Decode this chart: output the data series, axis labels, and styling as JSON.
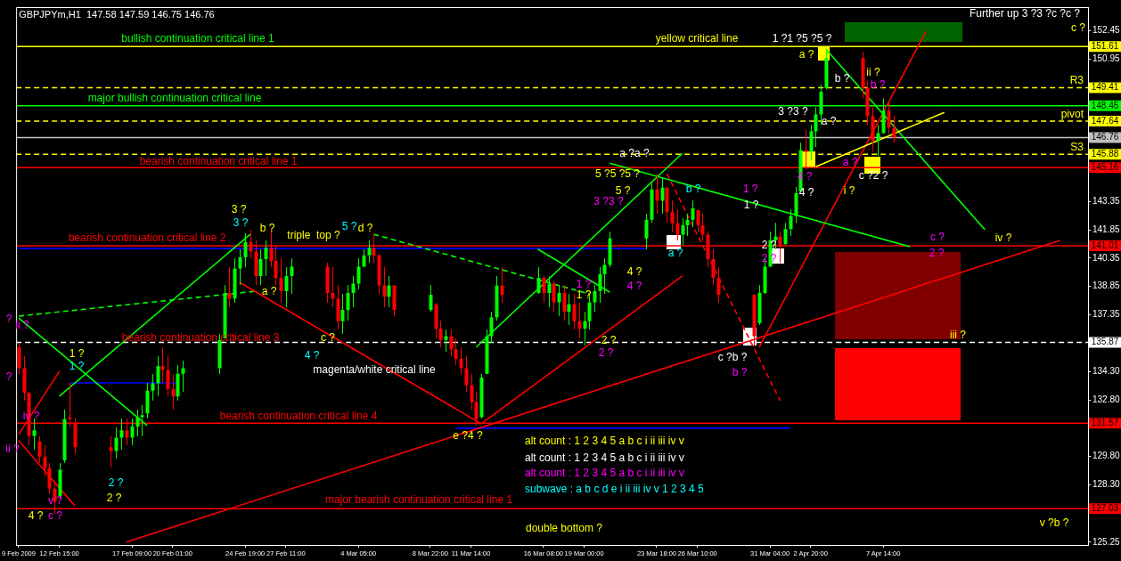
{
  "chart_data": {
    "type": "candlestick",
    "title": "GBPJPYm,H1  147.58 147.59 146.75 146.76",
    "x": [
      "2009-02-09T23:00",
      "2009-02-10T07:00",
      "2009-02-10T15:00",
      "2009-02-10T23:00",
      "2009-02-11T07:00",
      "2009-02-11T15:00",
      "2009-02-11T23:00",
      "2009-02-12T07:00",
      "2009-02-12T15:00",
      "2009-02-12T23:00",
      "2009-02-13T07:00",
      "2009-02-13T15:00",
      "2009-02-16T00:00",
      "2009-02-16T08:00",
      "2009-02-16T16:00",
      "2009-02-17T00:00",
      "2009-02-17T09:00",
      "2009-02-17T17:00",
      "2009-02-18T01:00",
      "2009-02-18T09:00",
      "2009-02-18T17:00",
      "2009-02-19T01:00",
      "2009-02-19T09:00",
      "2009-02-19T17:00",
      "2009-02-20T01:00",
      "2009-02-20T09:00",
      "2009-02-20T17:00",
      "2009-02-23T02:00",
      "2009-02-23T10:00",
      "2009-02-23T18:00",
      "2009-02-24T02:00",
      "2009-02-24T10:00",
      "2009-02-24T19:00",
      "2009-02-25T03:00",
      "2009-02-25T11:00",
      "2009-02-25T19:00",
      "2009-02-26T03:00",
      "2009-02-26T11:00",
      "2009-02-26T19:00",
      "2009-02-27T03:00",
      "2009-02-27T11:00",
      "2009-02-27T19:00",
      "2009-03-02T04:00",
      "2009-03-02T12:00",
      "2009-03-02T20:00",
      "2009-03-03T04:00",
      "2009-03-03T12:00",
      "2009-03-03T20:00",
      "2009-03-04T05:00",
      "2009-03-04T13:00",
      "2009-03-04T21:00",
      "2009-03-05T05:00",
      "2009-03-05T13:00",
      "2009-03-05T21:00",
      "2009-03-06T05:00",
      "2009-03-06T13:00",
      "2009-03-08T22:00",
      "2009-03-09T06:00",
      "2009-03-09T14:00",
      "2009-03-09T22:00",
      "2009-03-10T06:00",
      "2009-03-10T14:00",
      "2009-03-10T22:00",
      "2009-03-11T06:00",
      "2009-03-11T14:00",
      "2009-03-11T22:00",
      "2009-03-12T06:00",
      "2009-03-12T14:00",
      "2009-03-12T22:00",
      "2009-03-13T06:00",
      "2009-03-13T14:00",
      "2009-03-15T23:00",
      "2009-03-16T08:00",
      "2009-03-16T16:00",
      "2009-03-17T00:00",
      "2009-03-17T08:00",
      "2009-03-17T16:00",
      "2009-03-18T00:00",
      "2009-03-18T08:00",
      "2009-03-18T16:00",
      "2009-03-19T00:00",
      "2009-03-19T08:00",
      "2009-03-19T16:00",
      "2009-03-20T00:00",
      "2009-03-20T08:00",
      "2009-03-20T16:00",
      "2009-03-23T01:00",
      "2009-03-23T09:00",
      "2009-03-23T18:00",
      "2009-03-24T02:00",
      "2009-03-24T10:00",
      "2009-03-24T18:00",
      "2009-03-25T02:00",
      "2009-03-25T10:00",
      "2009-03-25T18:00",
      "2009-03-26T02:00",
      "2009-03-26T10:00",
      "2009-03-26T18:00",
      "2009-03-27T02:00",
      "2009-03-27T10:00",
      "2009-03-27T18:00",
      "2009-03-30T03:00",
      "2009-03-30T11:00",
      "2009-03-30T19:00",
      "2009-03-31T04:00",
      "2009-03-31T12:00",
      "2009-03-31T20:00",
      "2009-04-01T04:00",
      "2009-04-01T12:00",
      "2009-04-01T20:00",
      "2009-04-02T04:00",
      "2009-04-02T12:00",
      "2009-04-02T20:00",
      "2009-04-03T04:00",
      "2009-04-03T12:00",
      "2009-04-03T20:00",
      "2009-04-06T05:00",
      "2009-04-06T13:00",
      "2009-04-06T21:00",
      "2009-04-07T05:00",
      "2009-04-07T14:00",
      "2009-04-07T22:00",
      "2009-04-08T06:00"
    ],
    "ohlc": [
      [
        135.6,
        135.85,
        134.19,
        134.5
      ],
      [
        134.5,
        135.14,
        132.78,
        133.2
      ],
      [
        133.2,
        133.25,
        130.41,
        130.9
      ],
      [
        130.9,
        131.83,
        130.17,
        131.2
      ],
      [
        130.6,
        130.88,
        129.46,
        129.8
      ],
      [
        129.8,
        130.41,
        128.75,
        129.2
      ],
      [
        129.2,
        129.46,
        127.81,
        128.1
      ],
      [
        128.1,
        128.52,
        126.77,
        127.4
      ],
      [
        127.7,
        129.46,
        127.57,
        129.1
      ],
      [
        129.6,
        132.3,
        129.46,
        131.8
      ],
      [
        131.9,
        133.72,
        131.36,
        131.8
      ],
      [
        131.6,
        131.83,
        129.94,
        130.3
      ],
      [
        130.3,
        130.88,
        129.23,
        130.1
      ],
      [
        130.1,
        131.36,
        129.7,
        130.8
      ],
      [
        130.8,
        131.83,
        130.17,
        131.2
      ],
      [
        131.2,
        131.83,
        130.41,
        130.8
      ],
      [
        130.8,
        131.83,
        130.41,
        131.4
      ],
      [
        131.4,
        132.3,
        130.88,
        131.9
      ],
      [
        131.9,
        132.54,
        130.88,
        132.0
      ],
      [
        132.1,
        133.72,
        131.83,
        133.3
      ],
      [
        133.3,
        134.19,
        132.78,
        133.7
      ],
      [
        133.7,
        135.14,
        133.01,
        134.6
      ],
      [
        134.6,
        135.61,
        133.72,
        134.4
      ],
      [
        134.4,
        135.14,
        133.01,
        133.4
      ],
      [
        133.4,
        134.19,
        132.3,
        133.0
      ],
      [
        133.0,
        134.67,
        132.78,
        134.2
      ],
      [
        134.2,
        134.9,
        133.25,
        134.5
      ],
      [
        134.5,
        136.32,
        134.19,
        136.0
      ],
      [
        136.1,
        138.92,
        136.09,
        138.5
      ],
      [
        138.5,
        139.87,
        137.74,
        138.2
      ],
      [
        138.2,
        140.34,
        137.98,
        139.8
      ],
      [
        139.8,
        140.82,
        138.92,
        140.4
      ],
      [
        140.4,
        141.67,
        139.87,
        141.2
      ],
      [
        141.2,
        141.86,
        140.34,
        140.7
      ],
      [
        140.7,
        141.29,
        138.92,
        139.4
      ],
      [
        139.4,
        140.82,
        138.92,
        140.3
      ],
      [
        140.3,
        141.29,
        139.4,
        140.9
      ],
      [
        140.9,
        141.86,
        139.87,
        140.2
      ],
      [
        140.2,
        141.05,
        138.92,
        139.3
      ],
      [
        139.3,
        140.34,
        137.98,
        138.6
      ],
      [
        138.6,
        139.87,
        137.74,
        139.4
      ],
      [
        139.4,
        140.34,
        138.45,
        139.9
      ],
      [
        139.9,
        140.11,
        137.98,
        138.5
      ],
      [
        138.5,
        139.87,
        137.74,
        138.2
      ],
      [
        138.2,
        138.92,
        136.56,
        137.0
      ],
      [
        137.0,
        138.45,
        136.32,
        137.6
      ],
      [
        137.6,
        138.92,
        137.03,
        138.5
      ],
      [
        138.5,
        139.4,
        137.74,
        139.0
      ],
      [
        139.0,
        140.34,
        138.69,
        139.9
      ],
      [
        139.9,
        140.82,
        139.87,
        140.5
      ],
      [
        140.5,
        141.29,
        140.11,
        140.9
      ],
      [
        140.9,
        141.67,
        140.11,
        140.5
      ],
      [
        140.5,
        140.58,
        138.45,
        138.9
      ],
      [
        138.9,
        139.87,
        137.74,
        138.3
      ],
      [
        138.3,
        139.4,
        137.74,
        138.9
      ],
      [
        138.9,
        138.92,
        137.27,
        137.6
      ],
      [
        137.6,
        138.92,
        137.5,
        138.4
      ],
      [
        137.9,
        137.98,
        136.09,
        136.6
      ],
      [
        136.6,
        137.03,
        135.61,
        136.0
      ],
      [
        136.0,
        136.56,
        135.38,
        136.2
      ],
      [
        136.2,
        136.56,
        135.14,
        135.5
      ],
      [
        135.5,
        136.09,
        134.67,
        135.0
      ],
      [
        135.0,
        135.61,
        134.19,
        134.5
      ],
      [
        134.5,
        135.14,
        133.25,
        133.6
      ],
      [
        133.6,
        134.19,
        132.3,
        132.7
      ],
      [
        132.7,
        133.25,
        131.45,
        131.8
      ],
      [
        131.9,
        134.19,
        131.83,
        134.0
      ],
      [
        134.2,
        136.56,
        134.19,
        136.2
      ],
      [
        136.2,
        137.5,
        135.85,
        137.2
      ],
      [
        137.2,
        139.4,
        137.03,
        138.9
      ],
      [
        138.9,
        139.87,
        137.98,
        138.4
      ],
      [
        138.5,
        139.87,
        138.45,
        139.3
      ],
      [
        139.3,
        139.4,
        137.98,
        138.5
      ],
      [
        138.5,
        139.4,
        137.74,
        139.0
      ],
      [
        139.0,
        139.16,
        137.5,
        138.0
      ],
      [
        138.0,
        138.92,
        137.27,
        138.5
      ],
      [
        138.5,
        138.92,
        137.03,
        137.5
      ],
      [
        137.5,
        138.45,
        136.8,
        137.9
      ],
      [
        137.9,
        138.45,
        136.56,
        137.0
      ],
      [
        137.0,
        137.98,
        136.09,
        136.6
      ],
      [
        136.6,
        137.5,
        135.71,
        137.0
      ],
      [
        137.0,
        138.45,
        136.56,
        138.0
      ],
      [
        138.0,
        138.92,
        137.5,
        138.6
      ],
      [
        138.6,
        139.87,
        137.98,
        139.5
      ],
      [
        139.5,
        140.34,
        138.45,
        140.0
      ],
      [
        140.0,
        141.76,
        139.87,
        141.4
      ],
      [
        141.4,
        142.71,
        140.82,
        142.4
      ],
      [
        142.4,
        144.36,
        142.23,
        144.0
      ],
      [
        144.0,
        144.84,
        142.71,
        143.4
      ],
      [
        143.4,
        144.6,
        142.71,
        144.1
      ],
      [
        144.1,
        144.13,
        142.23,
        142.8
      ],
      [
        142.8,
        143.42,
        141.76,
        142.2
      ],
      [
        142.2,
        142.94,
        141.29,
        141.6
      ],
      [
        141.6,
        142.47,
        141.05,
        142.1
      ],
      [
        142.1,
        142.71,
        141.53,
        142.4
      ],
      [
        142.4,
        143.42,
        142.0,
        143.0
      ],
      [
        142.9,
        142.94,
        141.76,
        142.1
      ],
      [
        142.1,
        142.71,
        141.29,
        141.6
      ],
      [
        141.6,
        141.76,
        139.87,
        140.3
      ],
      [
        140.3,
        140.82,
        138.92,
        139.3
      ],
      [
        139.3,
        139.87,
        137.98,
        138.4
      ],
      [
        138.4,
        138.45,
        135.71,
        136.2
      ],
      [
        136.9,
        138.92,
        136.8,
        138.5
      ],
      [
        138.5,
        140.34,
        138.45,
        139.9
      ],
      [
        139.9,
        141.76,
        139.87,
        141.3
      ],
      [
        141.3,
        142.23,
        140.82,
        141.5
      ],
      [
        141.5,
        141.76,
        140.11,
        141.0
      ],
      [
        141.1,
        142.23,
        141.05,
        141.9
      ],
      [
        141.9,
        142.94,
        141.53,
        142.6
      ],
      [
        142.6,
        144.13,
        142.23,
        143.8
      ],
      [
        143.9,
        146.49,
        143.89,
        146.1
      ],
      [
        146.1,
        147.2,
        145.07,
        146.0
      ],
      [
        146.0,
        147.44,
        145.55,
        147.1
      ],
      [
        147.1,
        148.38,
        146.26,
        148.0
      ],
      [
        148.0,
        149.57,
        147.44,
        149.2
      ],
      [
        149.4,
        151.46,
        149.33,
        151.0
      ],
      [
        151.0,
        151.32,
        148.86,
        149.4
      ],
      [
        149.4,
        149.8,
        147.44,
        147.9
      ],
      [
        147.9,
        148.38,
        146.02,
        146.6
      ],
      [
        146.6,
        147.44,
        145.78,
        147.0
      ],
      [
        147.0,
        148.86,
        146.97,
        148.2
      ],
      [
        148.2,
        148.62,
        146.97,
        147.3
      ],
      [
        147.3,
        147.91,
        146.49,
        146.76
      ]
    ],
    "colors": [
      "#ff0000",
      "#ff0000",
      "#ff0000",
      "#00ff00",
      "#ff0000",
      "#ff0000",
      "#ff0000",
      "#ff0000",
      "#00ff00",
      "#00ff00",
      "#ff0000",
      "#ff0000",
      "#ff0000",
      "#00ff00",
      "#00ff00",
      "#ff0000",
      "#00ff00",
      "#00ff00",
      "#00ff00",
      "#00ff00",
      "#00ff00",
      "#00ff00",
      "#ff0000",
      "#ff0000",
      "#ff0000",
      "#00ff00",
      "#00ff00",
      "#00ff00",
      "#00ff00",
      "#ff0000",
      "#00ff00",
      "#00ff00",
      "#00ff00",
      "#ff0000",
      "#ff0000",
      "#00ff00",
      "#00ff00",
      "#ff0000",
      "#ff0000",
      "#ff0000",
      "#00ff00",
      "#00ff00",
      "#ff0000",
      "#ff0000",
      "#ff0000",
      "#00ff00",
      "#00ff00",
      "#00ff00",
      "#00ff00",
      "#00ff00",
      "#00ff00",
      "#ff0000",
      "#ff0000",
      "#ff0000",
      "#00ff00",
      "#ff0000",
      "#00ff00",
      "#ff0000",
      "#ff0000",
      "#00ff00",
      "#ff0000",
      "#ff0000",
      "#ff0000",
      "#ff0000",
      "#ff0000",
      "#ff0000",
      "#00ff00",
      "#00ff00",
      "#00ff00",
      "#00ff00",
      "#ff0000",
      "#00ff00",
      "#ff0000",
      "#00ff00",
      "#ff0000",
      "#00ff00",
      "#ff0000",
      "#00ff00",
      "#ff0000",
      "#ff0000",
      "#00ff00",
      "#00ff00",
      "#00ff00",
      "#00ff00",
      "#00ff00",
      "#00ff00",
      "#00ff00",
      "#00ff00",
      "#ff0000",
      "#00ff00",
      "#ff0000",
      "#ff0000",
      "#ff0000",
      "#00ff00",
      "#00ff00",
      "#00ff00",
      "#ff0000",
      "#ff0000",
      "#ff0000",
      "#ff0000",
      "#ff0000",
      "#ff0000",
      "#00ff00",
      "#00ff00",
      "#00ff00",
      "#00ff00",
      "#ff0000",
      "#00ff00",
      "#00ff00",
      "#00ff00",
      "#00ff00",
      "#ff0000",
      "#00ff00",
      "#00ff00",
      "#00ff00",
      "#00ff00",
      "#ff0000",
      "#ff0000",
      "#ff0000",
      "#00ff00",
      "#00ff00",
      "#ff0000",
      "#ff0000"
    ],
    "xlim": [
      "2009-02-09T19:00",
      "2009-04-21T00:00"
    ],
    "xticks": [
      {
        "value": "2009-02-09T23:00",
        "label": "9 Feb 2009"
      },
      {
        "value": "2009-02-12T15:00",
        "label": "12 Feb 15:00"
      },
      {
        "value": "2009-02-17T09:00",
        "label": "17 Feb 09:00"
      },
      {
        "value": "2009-02-20T01:00",
        "label": "20 Feb 01:00"
      },
      {
        "value": "2009-02-24T19:00",
        "label": "24 Feb 19:00"
      },
      {
        "value": "2009-02-27T11:00",
        "label": "27 Feb 11:00"
      },
      {
        "value": "2009-03-04T05:00",
        "label": "4 Mar 05:00"
      },
      {
        "value": "2009-03-08T22:00",
        "label": "8 Mar 22:00"
      },
      {
        "value": "2009-03-11T14:00",
        "label": "11 Mar 14:00"
      },
      {
        "value": "2009-03-16T08:00",
        "label": "16 Mar 08:00"
      },
      {
        "value": "2009-03-19T00:00",
        "label": "19 Mar 00:00"
      },
      {
        "value": "2009-03-23T18:00",
        "label": "23 Mar 18:00"
      },
      {
        "value": "2009-03-26T10:00",
        "label": "26 Mar 10:00"
      },
      {
        "value": "2009-03-31T04:00",
        "label": "31 Mar 04:00"
      },
      {
        "value": "2009-04-02T20:00",
        "label": "2 Apr 20:00"
      },
      {
        "value": "2009-04-07T14:00",
        "label": "7 Apr 14:00"
      }
    ],
    "ylim": [
      125.1,
      153.7
    ],
    "yticks": [
      152.45,
      150.95,
      143.35,
      141.85,
      140.35,
      138.85,
      137.35,
      {
        "value": 134.3,
        "label": "134.30"
      },
      {
        "value": 132.8,
        "label": "132.80"
      },
      {
        "value": 129.8,
        "label": "129.80"
      },
      {
        "value": 128.3,
        "label": "128.30"
      },
      125.25
    ],
    "grid": false,
    "marker": "none",
    "series": [
      {
        "type": "line",
        "color": "#ff0000",
        "x": [
          "2009-02-17T00:00",
          "2009-04-19T04:00"
        ],
        "values": [
          125.25,
          141.29
        ]
      },
      {
        "type": "line",
        "color": "#ff0000",
        "x": [
          "2009-02-24T10:00",
          "2009-03-12T06:00"
        ],
        "values": [
          139.07,
          131.55
        ]
      },
      {
        "type": "line",
        "color": "#00ff00",
        "x": [
          "2009-03-20T16:00",
          "2009-04-09T08:00"
        ],
        "values": [
          145.4,
          140.96
        ]
      },
      {
        "type": "line",
        "color": "#ffff00",
        "x": [
          "2009-04-03T04:00",
          "2009-04-11T14:00"
        ],
        "values": [
          145.21,
          148.1
        ]
      },
      {
        "type": "line",
        "color": "#00ff00",
        "x": [
          "2009-04-03T20:00",
          "2009-04-14T06:00"
        ],
        "values": [
          151.46,
          141.86
        ]
      },
      {
        "type": "line",
        "color": "#ff0000",
        "x": [
          "2009-03-30T11:00",
          "2009-04-10T09:00"
        ],
        "values": [
          135.61,
          152.4
        ]
      },
      {
        "type": "line",
        "color": "#00ff00",
        "x": [
          "2009-02-12T15:00",
          "2009-02-25T03:00"
        ],
        "values": [
          133.01,
          141.62
        ]
      },
      {
        "type": "line",
        "color": "#00ff00",
        "line_style": "dashed",
        "x": [
          "2009-02-09T23:00",
          "2009-02-25T11:00"
        ],
        "values": [
          137.27,
          138.59
        ]
      },
      {
        "type": "line",
        "color": "#00ff00",
        "x": [
          "2009-02-09T23:00",
          "2009-02-18T09:00"
        ],
        "values": [
          137.17,
          131.45
        ]
      },
      {
        "type": "line",
        "color": "#00ff00",
        "line_style": "dashed",
        "x": [
          "2009-03-05T05:00",
          "2009-03-19T08:00"
        ],
        "values": [
          141.62,
          138.45
        ]
      },
      {
        "type": "line",
        "color": "#00ff00",
        "x": [
          "2009-03-11T22:00",
          "2009-03-25T10:00"
        ],
        "values": [
          135.61,
          145.92
        ]
      },
      {
        "type": "line",
        "color": "#00ff00",
        "x": [
          "2009-03-15T23:00",
          "2009-03-20T16:00"
        ],
        "values": [
          140.83,
          138.55
        ]
      },
      {
        "type": "line",
        "color": "#ff0000",
        "x": [
          "2009-03-12T06:00",
          "2009-03-25T10:00"
        ],
        "values": [
          131.55,
          139.4
        ]
      },
      {
        "type": "line",
        "color": "#ff0000",
        "line_style": "dashed",
        "x": [
          "2009-03-24T10:00",
          "2009-03-31T20:00"
        ],
        "values": [
          144.84,
          132.77
        ]
      },
      {
        "type": "line",
        "color": "#ff0000",
        "x": [
          "2009-02-09T23:00",
          "2009-02-13T15:00"
        ],
        "values": [
          130.65,
          127.19
        ]
      },
      {
        "type": "line",
        "color": "#ff0000",
        "x": [
          "2009-02-09T23:00",
          "2009-02-12T15:00"
        ],
        "values": [
          130.98,
          134.34
        ]
      },
      {
        "type": "line",
        "color": "#0000ff",
        "x": [
          "2009-02-09T23:00",
          "2009-03-23T01:00"
        ],
        "values": [
          140.86,
          140.86
        ]
      },
      {
        "type": "line",
        "color": "#0000ff",
        "x": [
          "2009-02-13T07:00",
          "2009-02-20T09:00"
        ],
        "values": [
          133.72,
          133.72
        ]
      },
      {
        "type": "line",
        "color": "#0000ff",
        "x": [
          "2009-03-10T14:00",
          "2009-04-01T12:00"
        ],
        "values": [
          131.31,
          131.31
        ]
      }
    ],
    "ref_lines": [
      {
        "axis": "y",
        "value": 151.61,
        "label": "151.61",
        "color": "#ffff00",
        "line_style": "solid"
      },
      {
        "axis": "y",
        "value": 149.41,
        "label": "149.41",
        "color": "#ffff00",
        "line_style": "dashed"
      },
      {
        "axis": "y",
        "value": 148.45,
        "label": "148.45",
        "color": "#00ff00",
        "line_style": "solid"
      },
      {
        "axis": "y",
        "value": 147.64,
        "label": "147.64",
        "color": "#ffff00",
        "line_style": "dashed"
      },
      {
        "axis": "y",
        "value": 146.76,
        "label": "146.76",
        "color": "#c0c0c0",
        "line_style": "solid"
      },
      {
        "axis": "y",
        "value": 145.88,
        "label": "145.88",
        "color": "#ffff00",
        "line_style": "dashed"
      },
      {
        "axis": "y",
        "value": 145.16,
        "label": "145.16",
        "color": "#ff0000",
        "line_style": "solid"
      },
      {
        "axis": "y",
        "value": 141.01,
        "label": "141.01",
        "color": "#ff0000",
        "line_style": "solid"
      },
      {
        "axis": "y",
        "value": 135.87,
        "label": "135.87",
        "color": "#ffffff",
        "line_style": "dashed"
      },
      {
        "axis": "y",
        "value": 131.57,
        "label": "131.57",
        "color": "#ff0000",
        "line_style": "solid"
      },
      {
        "axis": "y",
        "value": 127.03,
        "label": "127.03",
        "color": "#ff0000",
        "line_style": "solid"
      }
    ],
    "annotations": [
      "Further up 3 ?3 ?c ?c ?",
      "c ?",
      "bullish continuation critical line 1",
      "yellow critical line",
      "1 ?1 ?5 ?5 ?",
      "a ?",
      "b ?",
      "ii ?",
      "b ?",
      "R3",
      "major bullish continuation critical line",
      "3 ?3 ?",
      "pivot",
      "a ?",
      "S3",
      "a ?a ?",
      "bearish continuation critical line 1",
      "5 ?5 ?5 ?",
      "5 ?",
      "b ?",
      "1 ?",
      "1 ?",
      "a ?",
      "4 ?",
      "c ?2 ?",
      "4 ?",
      "i ?",
      "3 ?3 ?",
      "3 ?",
      "3 ?",
      "b ?",
      "triple  top ?",
      "5 ?",
      "d ?",
      "bearish continuation critical line 2",
      "a ?",
      "c ?",
      "2 ?",
      "iv ?",
      "2 ?",
      "2 ?",
      "4 ?",
      "4 ?",
      "1 ?",
      "1 ?",
      "a ?",
      "bearish continuation critical line 3",
      "c ?",
      "4 ?",
      "iii ?",
      "2 ?",
      "2 ?",
      "c ?b ?",
      "b ?",
      "magenta/white critical line",
      "1 ?",
      "1 ?",
      "?",
      "ii ?",
      "?",
      "iv ?",
      "bearish continuation critical line 4",
      "ii ?",
      "e ?4 ?",
      "alt count : 1 2 3 4 5 a b c i ii iii iv v",
      "alt count : 1 2 3 4 5 a b c i ii iii iv v",
      "alt count : 1 2 3 4 5 a b c i ii iii iv v",
      "subwave : a b c d e i ii iii iv v 1 2 3 4 5",
      "2 ?",
      "2 ?",
      "v ?",
      "major bearish continuation critical line 1",
      "4 ?",
      "c ?",
      "double bottom ?",
      "v ?b ?"
    ]
  }
}
